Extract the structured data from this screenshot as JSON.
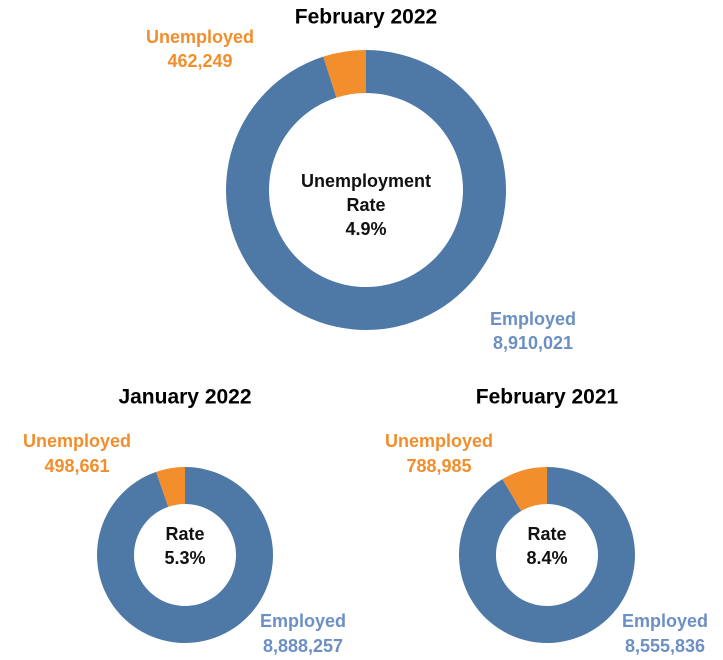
{
  "chart_data": [
    {
      "type": "pie",
      "donut": true,
      "title": "February 2022",
      "categories": [
        "Unemployed",
        "Employed"
      ],
      "values": [
        462249,
        8910021
      ],
      "value_labels": [
        "462,249",
        "8,910,021"
      ],
      "colors": [
        "#f28e2b",
        "#4e79a7"
      ],
      "label_colors": [
        "#f28e2b",
        "#6c8fc4"
      ],
      "center_label": [
        "Unemployment",
        "Rate"
      ],
      "rate": 4.9,
      "rate_label": "4.9%"
    },
    {
      "type": "pie",
      "donut": true,
      "title": "January 2022",
      "categories": [
        "Unemployed",
        "Employed"
      ],
      "values": [
        498661,
        8888257
      ],
      "value_labels": [
        "498,661",
        "8,888,257"
      ],
      "colors": [
        "#f28e2b",
        "#4e79a7"
      ],
      "label_colors": [
        "#f28e2b",
        "#6c8fc4"
      ],
      "center_label": [
        "Rate"
      ],
      "rate": 5.3,
      "rate_label": "5.3%"
    },
    {
      "type": "pie",
      "donut": true,
      "title": "February 2021",
      "categories": [
        "Unemployed",
        "Employed"
      ],
      "values": [
        788985,
        8555836
      ],
      "value_labels": [
        "788,985",
        "8,555,836"
      ],
      "colors": [
        "#f28e2b",
        "#4e79a7"
      ],
      "label_colors": [
        "#f28e2b",
        "#6c8fc4"
      ],
      "center_label": [
        "Rate"
      ],
      "rate": 8.4,
      "rate_label": "8.4%"
    }
  ]
}
